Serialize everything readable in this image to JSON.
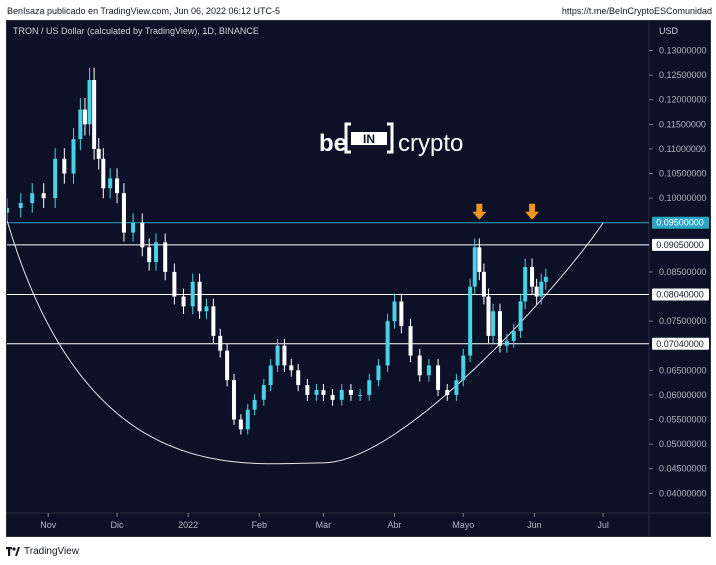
{
  "header": {
    "attribution": "BenIsaza publicado en TradingView.com, Jun 06, 2022 06:12 UTC-5",
    "link": "https://t.me/BeInCryptoESComunidad"
  },
  "footer": {
    "brand": "TradingView"
  },
  "watermark": {
    "left": "be",
    "middle": "IN",
    "right": "crypto"
  },
  "colors": {
    "background": "#0c1128",
    "candle": "#48d2e3",
    "hline": "#ffffff",
    "resistance": "#2ba5c4",
    "arrow": "#f0931f"
  },
  "chart_data": {
    "type": "candlestick",
    "title": "TRON / US Dollar (calculated by TradingView), 1D, BINANCE",
    "currency_label": "USD",
    "ylim": [
      0.036,
      0.136
    ],
    "y_ticks": [
      "0.13000000",
      "0.12500000",
      "0.12000000",
      "0.11500000",
      "0.11000000",
      "0.10500000",
      "0.10000000",
      "0.09500000",
      "0.09050000",
      "0.08500000",
      "0.08040000",
      "0.07500000",
      "0.07040000",
      "0.06500000",
      "0.06000000",
      "0.05500000",
      "0.05000000",
      "0.04500000",
      "0.04000000"
    ],
    "x_ticks": [
      "Nov",
      "Dic",
      "2022",
      "Feb",
      "Mar",
      "Abr",
      "Mayo",
      "Jun",
      "Jul"
    ],
    "x_range": [
      "2021-10-14",
      "2022-07-21"
    ],
    "horizontal_levels": [
      {
        "value": 0.095,
        "label": "0.09500000",
        "style": "resistance"
      },
      {
        "value": 0.0905,
        "label": "0.09050000",
        "style": "level"
      },
      {
        "value": 0.0804,
        "label": "0.08040000",
        "style": "level"
      },
      {
        "value": 0.0704,
        "label": "0.07040000",
        "style": "level"
      }
    ],
    "arrows": [
      "2022-05-08",
      "2022-05-31"
    ],
    "curve": {
      "type": "cup",
      "start": "2021-10-14",
      "bottom_date": "2022-03-01",
      "bottom_value": 0.0462,
      "end": "2022-07-01",
      "start_value": 0.0955,
      "end_value": 0.095
    },
    "series_close": [
      [
        "2021-10-14",
        0.098
      ],
      [
        "2021-10-20",
        0.099
      ],
      [
        "2021-10-25",
        0.101
      ],
      [
        "2021-10-30",
        0.1
      ],
      [
        "2021-11-04",
        0.108
      ],
      [
        "2021-11-08",
        0.105
      ],
      [
        "2021-11-12",
        0.112
      ],
      [
        "2021-11-15",
        0.118
      ],
      [
        "2021-11-17",
        0.115
      ],
      [
        "2021-11-19",
        0.124
      ],
      [
        "2021-11-21",
        0.11
      ],
      [
        "2021-11-23",
        0.108
      ],
      [
        "2021-11-25",
        0.102
      ],
      [
        "2021-11-28",
        0.104
      ],
      [
        "2021-12-01",
        0.101
      ],
      [
        "2021-12-04",
        0.093
      ],
      [
        "2021-12-08",
        0.095
      ],
      [
        "2021-12-12",
        0.09
      ],
      [
        "2021-12-15",
        0.087
      ],
      [
        "2021-12-18",
        0.091
      ],
      [
        "2021-12-22",
        0.085
      ],
      [
        "2021-12-26",
        0.08
      ],
      [
        "2021-12-30",
        0.078
      ],
      [
        "2022-01-03",
        0.083
      ],
      [
        "2022-01-06",
        0.077
      ],
      [
        "2022-01-09",
        0.078
      ],
      [
        "2022-01-12",
        0.072
      ],
      [
        "2022-01-15",
        0.069
      ],
      [
        "2022-01-18",
        0.063
      ],
      [
        "2022-01-21",
        0.055
      ],
      [
        "2022-01-24",
        0.053
      ],
      [
        "2022-01-27",
        0.057
      ],
      [
        "2022-01-30",
        0.059
      ],
      [
        "2022-02-03",
        0.062
      ],
      [
        "2022-02-06",
        0.066
      ],
      [
        "2022-02-09",
        0.07
      ],
      [
        "2022-02-12",
        0.066
      ],
      [
        "2022-02-15",
        0.065
      ],
      [
        "2022-02-18",
        0.062
      ],
      [
        "2022-02-22",
        0.06
      ],
      [
        "2022-02-26",
        0.061
      ],
      [
        "2022-03-01",
        0.06
      ],
      [
        "2022-03-05",
        0.059
      ],
      [
        "2022-03-09",
        0.061
      ],
      [
        "2022-03-13",
        0.06
      ],
      [
        "2022-03-17",
        0.06
      ],
      [
        "2022-03-21",
        0.063
      ],
      [
        "2022-03-25",
        0.066
      ],
      [
        "2022-03-29",
        0.075
      ],
      [
        "2022-04-01",
        0.079
      ],
      [
        "2022-04-04",
        0.074
      ],
      [
        "2022-04-08",
        0.068
      ],
      [
        "2022-04-12",
        0.064
      ],
      [
        "2022-04-16",
        0.066
      ],
      [
        "2022-04-20",
        0.061
      ],
      [
        "2022-04-24",
        0.06
      ],
      [
        "2022-04-28",
        0.063
      ],
      [
        "2022-05-01",
        0.068
      ],
      [
        "2022-05-04",
        0.082
      ],
      [
        "2022-05-06",
        0.09
      ],
      [
        "2022-05-08",
        0.085
      ],
      [
        "2022-05-10",
        0.08
      ],
      [
        "2022-05-12",
        0.072
      ],
      [
        "2022-05-14",
        0.077
      ],
      [
        "2022-05-17",
        0.07
      ],
      [
        "2022-05-20",
        0.071
      ],
      [
        "2022-05-23",
        0.073
      ],
      [
        "2022-05-26",
        0.079
      ],
      [
        "2022-05-28",
        0.086
      ],
      [
        "2022-05-31",
        0.082
      ],
      [
        "2022-06-02",
        0.08
      ],
      [
        "2022-06-04",
        0.083
      ],
      [
        "2022-06-06",
        0.084
      ]
    ]
  }
}
